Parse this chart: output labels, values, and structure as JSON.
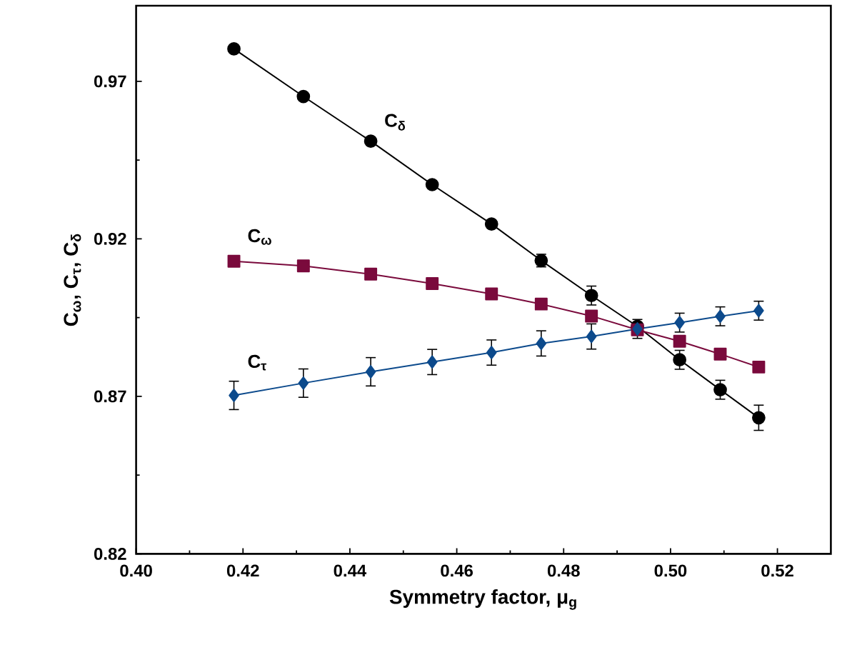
{
  "chart_data": {
    "type": "line",
    "xlabel": "Symmetry factor, μ$_{g}$",
    "ylabel": "C$_{ω}$, C$_{τ}$, C$_{δ}$",
    "x": [
      0.4183,
      0.4313,
      0.4439,
      0.4554,
      0.4665,
      0.4758,
      0.4852,
      0.4938,
      0.5017,
      0.5093,
      0.5165
    ],
    "series": [
      {
        "name": "C$_{δ}$",
        "color": "#000000",
        "marker": "circle",
        "values": [
          0.9803,
          0.9652,
          0.951,
          0.9372,
          0.9247,
          0.9131,
          0.902,
          0.8922,
          0.8816,
          0.8721,
          0.8632
        ],
        "errors": [
          null,
          null,
          null,
          null,
          null,
          0.002,
          0.003,
          null,
          0.003,
          0.003,
          0.004
        ]
      },
      {
        "name": "C$_{ω}$",
        "color": "#7a0a3c",
        "marker": "square",
        "values": [
          0.9129,
          0.9114,
          0.9088,
          0.9058,
          0.9025,
          0.8993,
          0.8955,
          0.8911,
          0.8875,
          0.8834,
          0.8793
        ]
      },
      {
        "name": "C$_{τ}$",
        "color": "#0c4a8c",
        "marker": "diamond",
        "values": [
          0.8703,
          0.8742,
          0.8778,
          0.8809,
          0.8839,
          0.8868,
          0.889,
          0.8914,
          0.8934,
          0.8954,
          0.8972
        ],
        "errors": [
          0.0045,
          0.0045,
          0.0045,
          0.004,
          0.004,
          0.004,
          0.004,
          0.003,
          0.003,
          0.003,
          0.003
        ]
      }
    ],
    "xlim": [
      0.4,
      0.53
    ],
    "xticks": [
      {
        "value": 0.4,
        "label": "0.40"
      },
      0.42,
      0.44,
      0.46,
      0.48,
      {
        "value": 0.5,
        "label": "0.50"
      },
      0.52
    ],
    "ylim": [
      0.82,
      0.994
    ],
    "yticks": [
      0.82,
      0.87,
      0.92,
      0.97
    ],
    "grid": false,
    "line_style": "solid"
  }
}
